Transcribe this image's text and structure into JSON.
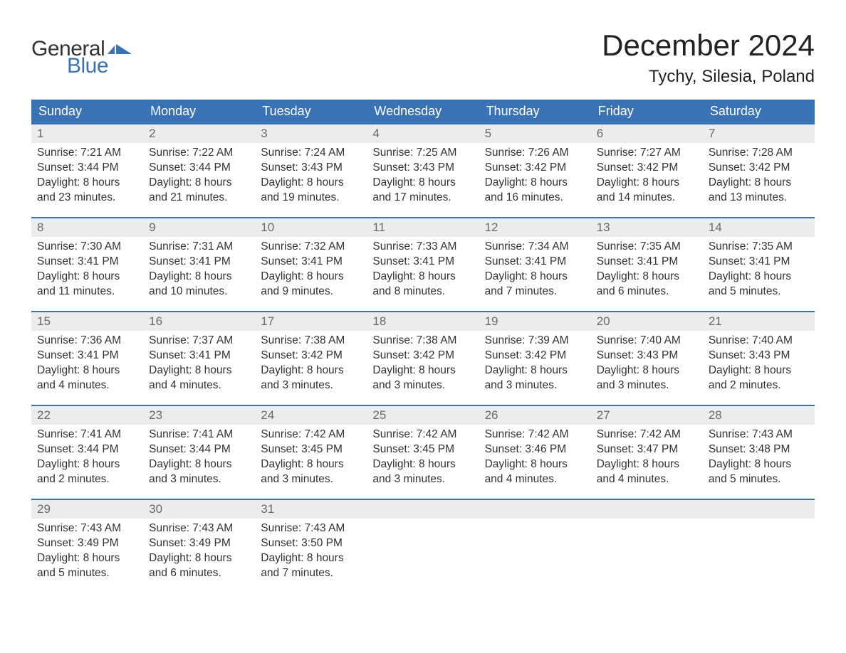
{
  "logo": {
    "general": "General",
    "blue": "Blue",
    "flag_color": "#3973b5"
  },
  "header": {
    "month_title": "December 2024",
    "location": "Tychy, Silesia, Poland"
  },
  "colors": {
    "header_bg": "#3973b5",
    "header_text": "#ffffff",
    "daynum_bg": "#ececec",
    "daynum_text": "#6a6a6a",
    "body_text": "#333333",
    "week_divider": "#3973b5",
    "page_bg": "#ffffff"
  },
  "typography": {
    "month_title_pt": 42,
    "location_pt": 24,
    "dayheader_pt": 18,
    "daynum_pt": 17,
    "body_pt": 15.5,
    "font_family": "Arial"
  },
  "calendar": {
    "type": "table",
    "columns": [
      "Sunday",
      "Monday",
      "Tuesday",
      "Wednesday",
      "Thursday",
      "Friday",
      "Saturday"
    ],
    "weeks": [
      [
        {
          "day": "1",
          "sunrise": "Sunrise: 7:21 AM",
          "sunset": "Sunset: 3:44 PM",
          "dl1": "Daylight: 8 hours",
          "dl2": "and 23 minutes."
        },
        {
          "day": "2",
          "sunrise": "Sunrise: 7:22 AM",
          "sunset": "Sunset: 3:44 PM",
          "dl1": "Daylight: 8 hours",
          "dl2": "and 21 minutes."
        },
        {
          "day": "3",
          "sunrise": "Sunrise: 7:24 AM",
          "sunset": "Sunset: 3:43 PM",
          "dl1": "Daylight: 8 hours",
          "dl2": "and 19 minutes."
        },
        {
          "day": "4",
          "sunrise": "Sunrise: 7:25 AM",
          "sunset": "Sunset: 3:43 PM",
          "dl1": "Daylight: 8 hours",
          "dl2": "and 17 minutes."
        },
        {
          "day": "5",
          "sunrise": "Sunrise: 7:26 AM",
          "sunset": "Sunset: 3:42 PM",
          "dl1": "Daylight: 8 hours",
          "dl2": "and 16 minutes."
        },
        {
          "day": "6",
          "sunrise": "Sunrise: 7:27 AM",
          "sunset": "Sunset: 3:42 PM",
          "dl1": "Daylight: 8 hours",
          "dl2": "and 14 minutes."
        },
        {
          "day": "7",
          "sunrise": "Sunrise: 7:28 AM",
          "sunset": "Sunset: 3:42 PM",
          "dl1": "Daylight: 8 hours",
          "dl2": "and 13 minutes."
        }
      ],
      [
        {
          "day": "8",
          "sunrise": "Sunrise: 7:30 AM",
          "sunset": "Sunset: 3:41 PM",
          "dl1": "Daylight: 8 hours",
          "dl2": "and 11 minutes."
        },
        {
          "day": "9",
          "sunrise": "Sunrise: 7:31 AM",
          "sunset": "Sunset: 3:41 PM",
          "dl1": "Daylight: 8 hours",
          "dl2": "and 10 minutes."
        },
        {
          "day": "10",
          "sunrise": "Sunrise: 7:32 AM",
          "sunset": "Sunset: 3:41 PM",
          "dl1": "Daylight: 8 hours",
          "dl2": "and 9 minutes."
        },
        {
          "day": "11",
          "sunrise": "Sunrise: 7:33 AM",
          "sunset": "Sunset: 3:41 PM",
          "dl1": "Daylight: 8 hours",
          "dl2": "and 8 minutes."
        },
        {
          "day": "12",
          "sunrise": "Sunrise: 7:34 AM",
          "sunset": "Sunset: 3:41 PM",
          "dl1": "Daylight: 8 hours",
          "dl2": "and 7 minutes."
        },
        {
          "day": "13",
          "sunrise": "Sunrise: 7:35 AM",
          "sunset": "Sunset: 3:41 PM",
          "dl1": "Daylight: 8 hours",
          "dl2": "and 6 minutes."
        },
        {
          "day": "14",
          "sunrise": "Sunrise: 7:35 AM",
          "sunset": "Sunset: 3:41 PM",
          "dl1": "Daylight: 8 hours",
          "dl2": "and 5 minutes."
        }
      ],
      [
        {
          "day": "15",
          "sunrise": "Sunrise: 7:36 AM",
          "sunset": "Sunset: 3:41 PM",
          "dl1": "Daylight: 8 hours",
          "dl2": "and 4 minutes."
        },
        {
          "day": "16",
          "sunrise": "Sunrise: 7:37 AM",
          "sunset": "Sunset: 3:41 PM",
          "dl1": "Daylight: 8 hours",
          "dl2": "and 4 minutes."
        },
        {
          "day": "17",
          "sunrise": "Sunrise: 7:38 AM",
          "sunset": "Sunset: 3:42 PM",
          "dl1": "Daylight: 8 hours",
          "dl2": "and 3 minutes."
        },
        {
          "day": "18",
          "sunrise": "Sunrise: 7:38 AM",
          "sunset": "Sunset: 3:42 PM",
          "dl1": "Daylight: 8 hours",
          "dl2": "and 3 minutes."
        },
        {
          "day": "19",
          "sunrise": "Sunrise: 7:39 AM",
          "sunset": "Sunset: 3:42 PM",
          "dl1": "Daylight: 8 hours",
          "dl2": "and 3 minutes."
        },
        {
          "day": "20",
          "sunrise": "Sunrise: 7:40 AM",
          "sunset": "Sunset: 3:43 PM",
          "dl1": "Daylight: 8 hours",
          "dl2": "and 3 minutes."
        },
        {
          "day": "21",
          "sunrise": "Sunrise: 7:40 AM",
          "sunset": "Sunset: 3:43 PM",
          "dl1": "Daylight: 8 hours",
          "dl2": "and 2 minutes."
        }
      ],
      [
        {
          "day": "22",
          "sunrise": "Sunrise: 7:41 AM",
          "sunset": "Sunset: 3:44 PM",
          "dl1": "Daylight: 8 hours",
          "dl2": "and 2 minutes."
        },
        {
          "day": "23",
          "sunrise": "Sunrise: 7:41 AM",
          "sunset": "Sunset: 3:44 PM",
          "dl1": "Daylight: 8 hours",
          "dl2": "and 3 minutes."
        },
        {
          "day": "24",
          "sunrise": "Sunrise: 7:42 AM",
          "sunset": "Sunset: 3:45 PM",
          "dl1": "Daylight: 8 hours",
          "dl2": "and 3 minutes."
        },
        {
          "day": "25",
          "sunrise": "Sunrise: 7:42 AM",
          "sunset": "Sunset: 3:45 PM",
          "dl1": "Daylight: 8 hours",
          "dl2": "and 3 minutes."
        },
        {
          "day": "26",
          "sunrise": "Sunrise: 7:42 AM",
          "sunset": "Sunset: 3:46 PM",
          "dl1": "Daylight: 8 hours",
          "dl2": "and 4 minutes."
        },
        {
          "day": "27",
          "sunrise": "Sunrise: 7:42 AM",
          "sunset": "Sunset: 3:47 PM",
          "dl1": "Daylight: 8 hours",
          "dl2": "and 4 minutes."
        },
        {
          "day": "28",
          "sunrise": "Sunrise: 7:43 AM",
          "sunset": "Sunset: 3:48 PM",
          "dl1": "Daylight: 8 hours",
          "dl2": "and 5 minutes."
        }
      ],
      [
        {
          "day": "29",
          "sunrise": "Sunrise: 7:43 AM",
          "sunset": "Sunset: 3:49 PM",
          "dl1": "Daylight: 8 hours",
          "dl2": "and 5 minutes."
        },
        {
          "day": "30",
          "sunrise": "Sunrise: 7:43 AM",
          "sunset": "Sunset: 3:49 PM",
          "dl1": "Daylight: 8 hours",
          "dl2": "and 6 minutes."
        },
        {
          "day": "31",
          "sunrise": "Sunrise: 7:43 AM",
          "sunset": "Sunset: 3:50 PM",
          "dl1": "Daylight: 8 hours",
          "dl2": "and 7 minutes."
        },
        null,
        null,
        null,
        null
      ]
    ]
  }
}
